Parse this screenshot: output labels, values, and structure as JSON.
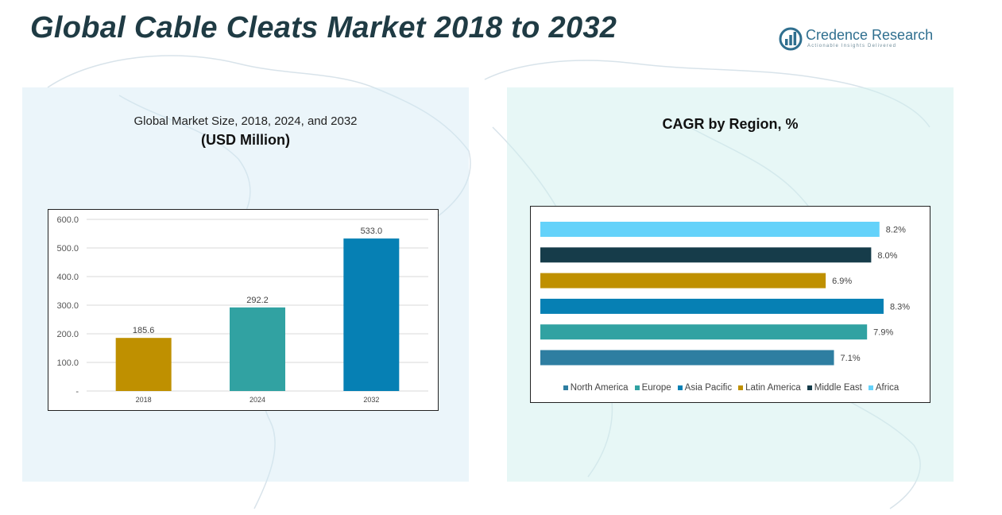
{
  "header": {
    "title": "Global Cable Cleats Market 2018 to 2032"
  },
  "brand": {
    "name": "Credence Research",
    "tagline": "Actionable Insights Delivered",
    "logo_icon": "credence-logo-icon",
    "color": "#2f6f8f"
  },
  "chart_data": [
    {
      "type": "bar",
      "title": "Global Market Size, 2018, 2024, and 2032",
      "subtitle": "(USD Million)",
      "categories": [
        "2018",
        "2024",
        "2032"
      ],
      "values": [
        185.6,
        292.2,
        533.0
      ],
      "value_labels": [
        "185.6",
        "292.2",
        "533.0"
      ],
      "colors": [
        "#bf9000",
        "#31a2a2",
        "#0680b4"
      ],
      "ylim": [
        0,
        600
      ],
      "yticks": [
        0,
        100,
        200,
        300,
        400,
        500,
        600
      ],
      "ytick_labels": [
        "-",
        "100.0",
        "200.0",
        "300.0",
        "400.0",
        "500.0",
        "600.0"
      ],
      "grid": true
    },
    {
      "type": "bar",
      "orientation": "horizontal",
      "title": "CAGR by Region, %",
      "categories": [
        "North America",
        "Europe",
        "Asia Pacific",
        "Latin America",
        "Middle East",
        "Africa"
      ],
      "values": [
        7.1,
        7.9,
        8.3,
        6.9,
        8.0,
        8.2
      ],
      "value_labels": [
        "7.1%",
        "7.9%",
        "8.3%",
        "6.9%",
        "8.0%",
        "8.2%"
      ],
      "colors": [
        "#2e7ea1",
        "#31a2a2",
        "#0680b4",
        "#bf9000",
        "#163c4a",
        "#64d2fa"
      ],
      "legend_position": "bottom",
      "grid": false
    }
  ]
}
